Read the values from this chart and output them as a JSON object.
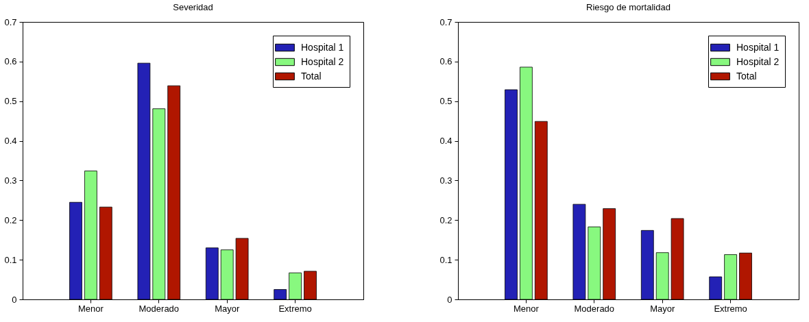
{
  "chart_data": [
    {
      "type": "bar",
      "title": "Severidad",
      "categories": [
        "Menor",
        "Moderado",
        "Mayor",
        "Extremo"
      ],
      "series": [
        {
          "name": "Hospital 1",
          "color": "#2321b5",
          "values": [
            0.245,
            0.596,
            0.13,
            0.025
          ]
        },
        {
          "name": "Hospital 2",
          "color": "#88f87f",
          "values": [
            0.324,
            0.481,
            0.125,
            0.067
          ]
        },
        {
          "name": "Total",
          "color": "#b01600",
          "values": [
            0.233,
            0.539,
            0.154,
            0.071
          ]
        }
      ],
      "ylim": [
        0,
        0.7
      ],
      "yticks": [
        0,
        0.1,
        0.2,
        0.3,
        0.4,
        0.5,
        0.6,
        0.7
      ],
      "legend": "top right"
    },
    {
      "type": "bar",
      "title": "Riesgo de mortalidad",
      "categories": [
        "Menor",
        "Moderado",
        "Mayor",
        "Extremo"
      ],
      "series": [
        {
          "name": "Hospital 1",
          "color": "#2321b5",
          "values": [
            0.529,
            0.24,
            0.174,
            0.057
          ]
        },
        {
          "name": "Hospital 2",
          "color": "#88f87f",
          "values": [
            0.586,
            0.183,
            0.118,
            0.113
          ]
        },
        {
          "name": "Total",
          "color": "#b01600",
          "values": [
            0.449,
            0.229,
            0.204,
            0.117
          ]
        }
      ],
      "ylim": [
        0,
        0.7
      ],
      "yticks": [
        0,
        0.1,
        0.2,
        0.3,
        0.4,
        0.5,
        0.6,
        0.7
      ],
      "legend": "top right"
    }
  ]
}
